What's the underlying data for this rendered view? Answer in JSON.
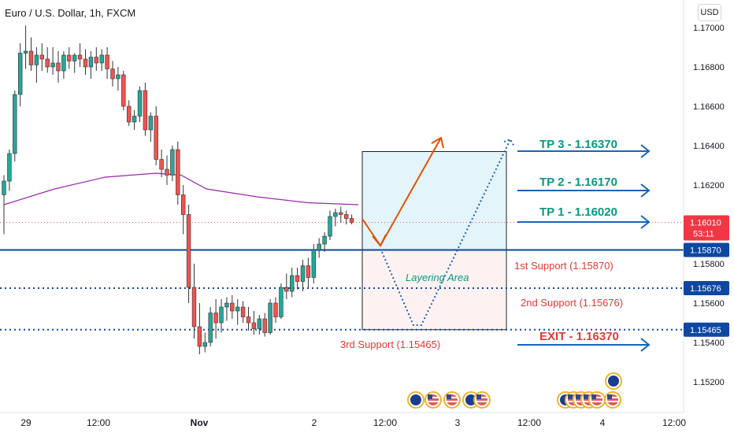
{
  "title": "Euro / U.S. Dollar, 1h, FXCM",
  "currency_button": "USD",
  "colors": {
    "up": "#26a69a",
    "down": "#ef5350",
    "ma": "#9c27b0",
    "level": "#0d47a1",
    "tp": "#089981",
    "support": "#e53935",
    "arrow_blue": "#1565c0",
    "arrow_orange": "#e65100",
    "upper_box": "#e3f4fa",
    "lower_box": "#fdf1f1"
  },
  "chart_data": {
    "type": "candlestick",
    "symbol": "EURUSD",
    "timeframe": "1h",
    "ylim": [
      1.151,
      1.1712
    ],
    "y_ticks": [
      "1.17000",
      "1.16800",
      "1.16600",
      "1.16400",
      "1.16200",
      "1.15800",
      "1.15600",
      "1.15400",
      "1.15200"
    ],
    "x_ticks": [
      "29",
      "12:00",
      "Nov",
      "2",
      "12:00",
      "3",
      "12:00",
      "4",
      "12:00"
    ],
    "last_price": "1.16010",
    "countdown": "53:11",
    "candles": [
      {
        "o": 1.1615,
        "h": 1.1625,
        "l": 1.1595,
        "c": 1.1622
      },
      {
        "o": 1.1622,
        "h": 1.1638,
        "l": 1.1617,
        "c": 1.1636
      },
      {
        "o": 1.1636,
        "h": 1.1668,
        "l": 1.1632,
        "c": 1.1666
      },
      {
        "o": 1.1666,
        "h": 1.1692,
        "l": 1.166,
        "c": 1.1687
      },
      {
        "o": 1.1687,
        "h": 1.1701,
        "l": 1.1679,
        "c": 1.1688
      },
      {
        "o": 1.1688,
        "h": 1.1695,
        "l": 1.1678,
        "c": 1.1681
      },
      {
        "o": 1.1681,
        "h": 1.169,
        "l": 1.1672,
        "c": 1.1686
      },
      {
        "o": 1.1686,
        "h": 1.1692,
        "l": 1.1678,
        "c": 1.1684
      },
      {
        "o": 1.1684,
        "h": 1.169,
        "l": 1.1677,
        "c": 1.168
      },
      {
        "o": 1.168,
        "h": 1.169,
        "l": 1.1676,
        "c": 1.1682
      },
      {
        "o": 1.1682,
        "h": 1.1688,
        "l": 1.1672,
        "c": 1.1678
      },
      {
        "o": 1.1678,
        "h": 1.1688,
        "l": 1.1674,
        "c": 1.1686
      },
      {
        "o": 1.1686,
        "h": 1.169,
        "l": 1.1679,
        "c": 1.1683
      },
      {
        "o": 1.1683,
        "h": 1.1687,
        "l": 1.1677,
        "c": 1.1686
      },
      {
        "o": 1.1686,
        "h": 1.1692,
        "l": 1.168,
        "c": 1.1684
      },
      {
        "o": 1.1684,
        "h": 1.1689,
        "l": 1.1676,
        "c": 1.168
      },
      {
        "o": 1.168,
        "h": 1.1688,
        "l": 1.1674,
        "c": 1.1685
      },
      {
        "o": 1.1685,
        "h": 1.169,
        "l": 1.1678,
        "c": 1.1682
      },
      {
        "o": 1.1682,
        "h": 1.1689,
        "l": 1.1678,
        "c": 1.1686
      },
      {
        "o": 1.1686,
        "h": 1.169,
        "l": 1.1674,
        "c": 1.1679
      },
      {
        "o": 1.1679,
        "h": 1.1683,
        "l": 1.167,
        "c": 1.1674
      },
      {
        "o": 1.1674,
        "h": 1.168,
        "l": 1.1668,
        "c": 1.1676
      },
      {
        "o": 1.1676,
        "h": 1.1678,
        "l": 1.1658,
        "c": 1.166
      },
      {
        "o": 1.166,
        "h": 1.1663,
        "l": 1.165,
        "c": 1.1652
      },
      {
        "o": 1.1652,
        "h": 1.1658,
        "l": 1.1648,
        "c": 1.1655
      },
      {
        "o": 1.1655,
        "h": 1.167,
        "l": 1.1652,
        "c": 1.1668
      },
      {
        "o": 1.1668,
        "h": 1.1672,
        "l": 1.1645,
        "c": 1.1648
      },
      {
        "o": 1.1648,
        "h": 1.1657,
        "l": 1.1642,
        "c": 1.1655
      },
      {
        "o": 1.1655,
        "h": 1.166,
        "l": 1.163,
        "c": 1.1633
      },
      {
        "o": 1.1633,
        "h": 1.1638,
        "l": 1.1624,
        "c": 1.1628
      },
      {
        "o": 1.1628,
        "h": 1.1635,
        "l": 1.162,
        "c": 1.1625
      },
      {
        "o": 1.1625,
        "h": 1.164,
        "l": 1.1622,
        "c": 1.1638
      },
      {
        "o": 1.1638,
        "h": 1.1642,
        "l": 1.161,
        "c": 1.1615
      },
      {
        "o": 1.1615,
        "h": 1.162,
        "l": 1.1595,
        "c": 1.1605
      },
      {
        "o": 1.1605,
        "h": 1.161,
        "l": 1.156,
        "c": 1.1568
      },
      {
        "o": 1.1568,
        "h": 1.158,
        "l": 1.1542,
        "c": 1.1548
      },
      {
        "o": 1.1548,
        "h": 1.156,
        "l": 1.1534,
        "c": 1.1538
      },
      {
        "o": 1.1538,
        "h": 1.1545,
        "l": 1.1535,
        "c": 1.154
      },
      {
        "o": 1.154,
        "h": 1.1558,
        "l": 1.1538,
        "c": 1.1555
      },
      {
        "o": 1.1555,
        "h": 1.1562,
        "l": 1.1542,
        "c": 1.155
      },
      {
        "o": 1.155,
        "h": 1.1562,
        "l": 1.1545,
        "c": 1.1558
      },
      {
        "o": 1.1558,
        "h": 1.1563,
        "l": 1.1551,
        "c": 1.156
      },
      {
        "o": 1.156,
        "h": 1.1564,
        "l": 1.1552,
        "c": 1.1556
      },
      {
        "o": 1.1556,
        "h": 1.1562,
        "l": 1.1549,
        "c": 1.1558
      },
      {
        "o": 1.1558,
        "h": 1.1561,
        "l": 1.155,
        "c": 1.1553
      },
      {
        "o": 1.1553,
        "h": 1.1558,
        "l": 1.1546,
        "c": 1.155
      },
      {
        "o": 1.155,
        "h": 1.1556,
        "l": 1.1544,
        "c": 1.1547
      },
      {
        "o": 1.1547,
        "h": 1.1554,
        "l": 1.1544,
        "c": 1.1552
      },
      {
        "o": 1.1552,
        "h": 1.1555,
        "l": 1.1543,
        "c": 1.1545
      },
      {
        "o": 1.1545,
        "h": 1.1562,
        "l": 1.1544,
        "c": 1.156
      },
      {
        "o": 1.156,
        "h": 1.1563,
        "l": 1.155,
        "c": 1.1553
      },
      {
        "o": 1.1553,
        "h": 1.157,
        "l": 1.1552,
        "c": 1.1568
      },
      {
        "o": 1.1568,
        "h": 1.1575,
        "l": 1.1562,
        "c": 1.1566
      },
      {
        "o": 1.1566,
        "h": 1.1578,
        "l": 1.1563,
        "c": 1.1574
      },
      {
        "o": 1.1574,
        "h": 1.1578,
        "l": 1.1567,
        "c": 1.1571
      },
      {
        "o": 1.1571,
        "h": 1.1582,
        "l": 1.1566,
        "c": 1.1579
      },
      {
        "o": 1.1579,
        "h": 1.1583,
        "l": 1.1568,
        "c": 1.1573
      },
      {
        "o": 1.1573,
        "h": 1.159,
        "l": 1.157,
        "c": 1.1587
      },
      {
        "o": 1.1587,
        "h": 1.1593,
        "l": 1.1583,
        "c": 1.159
      },
      {
        "o": 1.159,
        "h": 1.1596,
        "l": 1.1586,
        "c": 1.1594
      },
      {
        "o": 1.1594,
        "h": 1.1607,
        "l": 1.1592,
        "c": 1.1604
      },
      {
        "o": 1.1604,
        "h": 1.1608,
        "l": 1.1599,
        "c": 1.1606
      },
      {
        "o": 1.1606,
        "h": 1.1609,
        "l": 1.1601,
        "c": 1.1605
      },
      {
        "o": 1.1605,
        "h": 1.1607,
        "l": 1.16,
        "c": 1.1603
      },
      {
        "o": 1.1603,
        "h": 1.1605,
        "l": 1.16,
        "c": 1.1601
      }
    ],
    "moving_average": [
      [
        0,
        1.161
      ],
      [
        20,
        1.1618
      ],
      [
        40,
        1.1624
      ],
      [
        60,
        1.1626
      ],
      [
        70,
        1.1625
      ],
      [
        80,
        1.1618
      ],
      [
        100,
        1.1614
      ],
      [
        120,
        1.1611
      ],
      [
        140,
        1.161
      ]
    ],
    "levels": [
      {
        "name": "first_support",
        "price": 1.1587,
        "tag": "1.15870",
        "style": "solid"
      },
      {
        "name": "second_support",
        "price": 1.15676,
        "tag": "1.15676",
        "style": "dotted"
      },
      {
        "name": "third_support",
        "price": 1.15465,
        "tag": "1.15465",
        "style": "dotted"
      }
    ],
    "annotations": {
      "tp3": "TP 3 - 1.16370",
      "tp2": "TP 2 - 1.16170",
      "tp1": "TP 1 - 1.16020",
      "exit": "EXIT - 1.16370",
      "support1": "1st Support (1.15870)",
      "support2": "2nd Support (1.15676)",
      "support3": "3rd Support (1.15465)",
      "layering": "Layering Area"
    }
  }
}
